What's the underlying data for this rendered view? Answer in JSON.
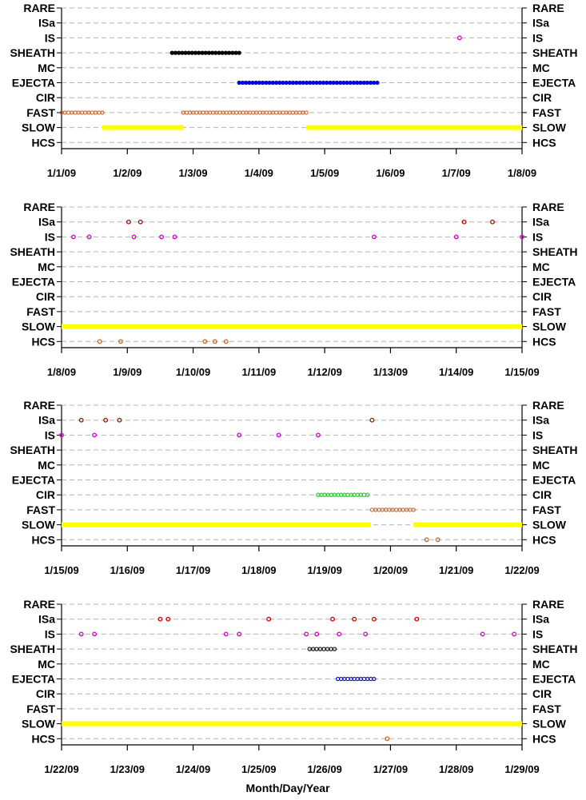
{
  "chart_data": {
    "type": "scatter",
    "x_axis_title": "Month/Day/Year",
    "categories": [
      "RARE",
      "ISa",
      "IS",
      "SHEATH",
      "MC",
      "EJECTA",
      "CIR",
      "FAST",
      "SLOW",
      "HCS"
    ],
    "colors": {
      "IS": "#d000d0",
      "ISa": "#c00000",
      "SHEATH": "#000000",
      "EJECTA": "#0000e0",
      "CIR": "#00dd00",
      "FAST": "#c86428",
      "SLOW": "#ffff00",
      "HCS": "#c86428"
    },
    "panels": [
      {
        "x_unit": "month",
        "x_range": [
          0,
          7
        ],
        "tick_labels": [
          "1/1/09",
          "1/2/09",
          "1/3/09",
          "1/4/09",
          "1/5/09",
          "1/6/09",
          "1/7/09",
          "1/8/09"
        ],
        "segments": [
          {
            "category": "FAST",
            "from": 0.0,
            "to": 0.62,
            "style": "dots"
          },
          {
            "category": "SLOW",
            "from": 0.62,
            "to": 1.85,
            "style": "solid"
          },
          {
            "category": "FAST",
            "from": 1.85,
            "to": 3.72,
            "style": "dots"
          },
          {
            "category": "SLOW",
            "from": 3.72,
            "to": 7.0,
            "style": "solid"
          },
          {
            "category": "SHEATH",
            "from": 1.68,
            "to": 2.7,
            "style": "filled"
          },
          {
            "category": "EJECTA",
            "from": 2.7,
            "to": 4.8,
            "style": "filled"
          }
        ],
        "points": [
          {
            "category": "IS",
            "x": 6.05
          }
        ]
      },
      {
        "x_unit": "day",
        "x_range": [
          8,
          15
        ],
        "tick_labels": [
          "1/8/09",
          "1/9/09",
          "1/10/09",
          "1/11/09",
          "1/12/09",
          "1/13/09",
          "1/14/09",
          "1/15/09"
        ],
        "segments": [
          {
            "category": "SLOW",
            "from": 8.0,
            "to": 15.0,
            "style": "solid"
          }
        ],
        "points": [
          {
            "category": "ISa",
            "x": 9.02
          },
          {
            "category": "ISa",
            "x": 9.2
          },
          {
            "category": "ISa",
            "x": 14.12
          },
          {
            "category": "ISa",
            "x": 14.55
          },
          {
            "category": "IS",
            "x": 8.18
          },
          {
            "category": "IS",
            "x": 8.42
          },
          {
            "category": "IS",
            "x": 9.1
          },
          {
            "category": "IS",
            "x": 9.52
          },
          {
            "category": "IS",
            "x": 9.72
          },
          {
            "category": "IS",
            "x": 12.75
          },
          {
            "category": "IS",
            "x": 14.0
          },
          {
            "category": "IS",
            "x": 15.0
          },
          {
            "category": "HCS",
            "x": 8.58
          },
          {
            "category": "HCS",
            "x": 8.9
          },
          {
            "category": "HCS",
            "x": 10.18
          },
          {
            "category": "HCS",
            "x": 10.33
          },
          {
            "category": "HCS",
            "x": 10.5
          }
        ]
      },
      {
        "x_unit": "day",
        "x_range": [
          15,
          22
        ],
        "tick_labels": [
          "1/15/09",
          "1/16/09",
          "1/17/09",
          "1/18/09",
          "1/19/09",
          "1/20/09",
          "1/21/09",
          "1/22/09"
        ],
        "segments": [
          {
            "category": "SLOW",
            "from": 15.0,
            "to": 19.7,
            "style": "solid"
          },
          {
            "category": "CIR",
            "from": 18.9,
            "to": 19.65,
            "style": "dots"
          },
          {
            "category": "FAST",
            "from": 19.72,
            "to": 20.35,
            "style": "dots"
          },
          {
            "category": "SLOW",
            "from": 20.35,
            "to": 22.0,
            "style": "solid"
          }
        ],
        "points": [
          {
            "category": "ISa",
            "x": 15.3
          },
          {
            "category": "ISa",
            "x": 15.67
          },
          {
            "category": "ISa",
            "x": 15.88
          },
          {
            "category": "ISa",
            "x": 19.72
          },
          {
            "category": "IS",
            "x": 15.0
          },
          {
            "category": "IS",
            "x": 15.5
          },
          {
            "category": "IS",
            "x": 17.7
          },
          {
            "category": "IS",
            "x": 18.3
          },
          {
            "category": "IS",
            "x": 18.9
          },
          {
            "category": "HCS",
            "x": 20.55
          },
          {
            "category": "HCS",
            "x": 20.72
          }
        ]
      },
      {
        "x_unit": "day",
        "x_range": [
          22,
          29
        ],
        "tick_labels": [
          "1/22/09",
          "1/23/09",
          "1/24/09",
          "1/25/09",
          "1/26/09",
          "1/27/09",
          "1/28/09",
          "1/29/09"
        ],
        "segments": [
          {
            "category": "SLOW",
            "from": 22.0,
            "to": 29.0,
            "style": "solid"
          },
          {
            "category": "SHEATH",
            "from": 25.77,
            "to": 26.15,
            "style": "dots"
          },
          {
            "category": "EJECTA",
            "from": 26.2,
            "to": 26.75,
            "style": "dots"
          }
        ],
        "points": [
          {
            "category": "ISa",
            "x": 23.5
          },
          {
            "category": "ISa",
            "x": 23.62
          },
          {
            "category": "ISa",
            "x": 25.15
          },
          {
            "category": "ISa",
            "x": 26.12
          },
          {
            "category": "ISa",
            "x": 26.45
          },
          {
            "category": "ISa",
            "x": 26.75
          },
          {
            "category": "ISa",
            "x": 27.4
          },
          {
            "category": "IS",
            "x": 22.3
          },
          {
            "category": "IS",
            "x": 22.5
          },
          {
            "category": "IS",
            "x": 24.5
          },
          {
            "category": "IS",
            "x": 24.7
          },
          {
            "category": "IS",
            "x": 25.72
          },
          {
            "category": "IS",
            "x": 25.88
          },
          {
            "category": "IS",
            "x": 26.22
          },
          {
            "category": "IS",
            "x": 26.62
          },
          {
            "category": "IS",
            "x": 28.4
          },
          {
            "category": "IS",
            "x": 28.88
          },
          {
            "category": "HCS",
            "x": 26.95
          }
        ]
      }
    ]
  }
}
